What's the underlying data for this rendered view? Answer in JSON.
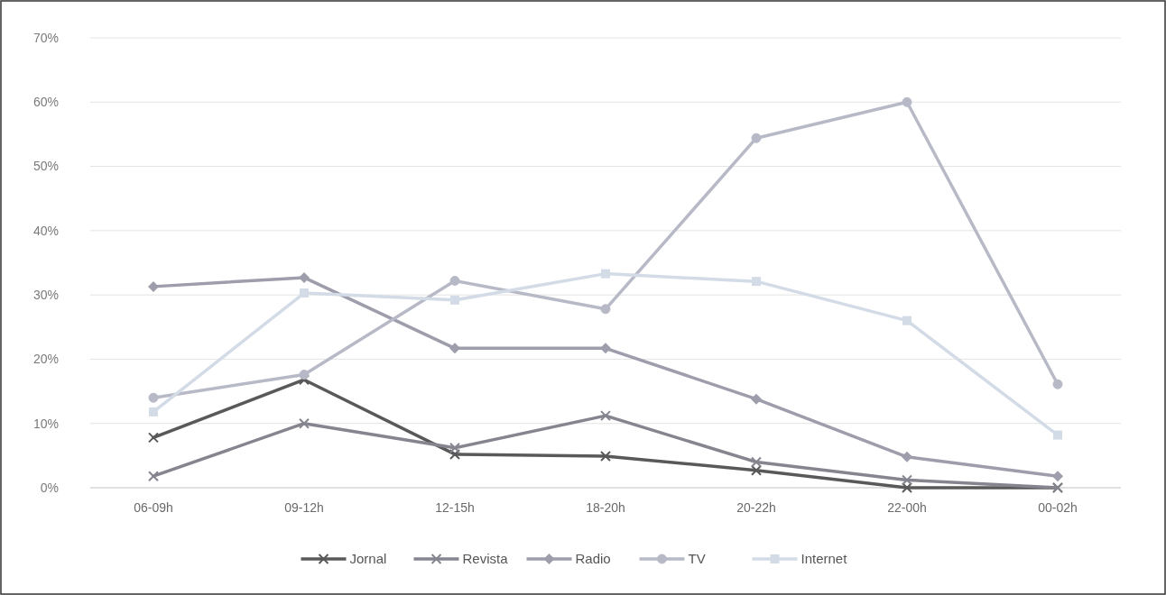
{
  "chart_data": {
    "type": "line",
    "categories": [
      "06-09h",
      "09-12h",
      "12-15h",
      "18-20h",
      "20-22h",
      "22-00h",
      "00-02h"
    ],
    "ylim": [
      0,
      70
    ],
    "yticks": [
      {
        "value": 0,
        "label": "0%"
      },
      {
        "value": 10,
        "label": "10%"
      },
      {
        "value": 20,
        "label": "20%"
      },
      {
        "value": 30,
        "label": "30%"
      },
      {
        "value": 40,
        "label": "40%"
      },
      {
        "value": 50,
        "label": "50%"
      },
      {
        "value": 60,
        "label": "60%"
      },
      {
        "value": 70,
        "label": "70%"
      }
    ],
    "grid": "y",
    "legend": "bottom",
    "series": [
      {
        "name": "Jornal",
        "color": "#595959",
        "marker": "cross",
        "values": [
          7.8,
          16.8,
          5.2,
          4.9,
          2.7,
          0,
          0
        ]
      },
      {
        "name": "Revista",
        "color": "#85858f",
        "marker": "cross",
        "values": [
          1.8,
          10,
          6.2,
          11.2,
          4,
          1.2,
          0
        ]
      },
      {
        "name": "Radio",
        "color": "#9d9dab",
        "marker": "diamond",
        "values": [
          31.3,
          32.7,
          21.7,
          21.7,
          13.8,
          4.8,
          1.8
        ]
      },
      {
        "name": "TV",
        "color": "#b7bac6",
        "marker": "circle",
        "values": [
          14,
          17.6,
          32.2,
          27.8,
          54.4,
          60,
          16.1
        ]
      },
      {
        "name": "Internet",
        "color": "#d3dbe6",
        "marker": "square",
        "values": [
          11.8,
          30.3,
          29.2,
          33.3,
          32.1,
          26,
          8.2
        ]
      }
    ]
  }
}
